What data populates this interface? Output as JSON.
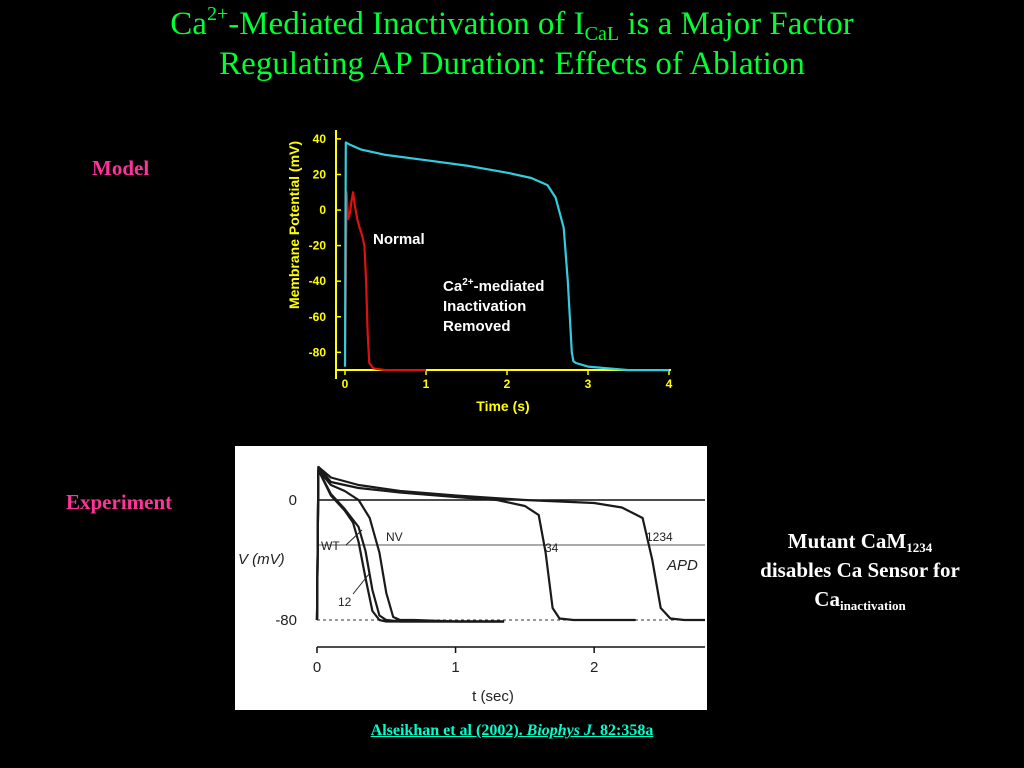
{
  "slide": {
    "title_ca": "Ca",
    "title_sup": "2+",
    "title_mid": "-Mediated Inactivation of I",
    "title_sub": "CaL",
    "title_end": " is a Major Factor",
    "title_line2": "Regulating AP Duration: Effects of Ablation",
    "model_label": "Model",
    "experiment_label": "Experiment",
    "mutant_text1": "Mutant CaM",
    "mutant_sub1": "1234",
    "mutant_text2": "disables Ca Sensor for",
    "mutant_text3": "Ca",
    "mutant_sub3": "inactivation",
    "citation_pre": "Alseikhan et al (2002). ",
    "citation_journal": "Biophys J.",
    "citation_post": " 82:358a"
  },
  "colors": {
    "title": "#00ff33",
    "labels": "#ff3399",
    "model_axes": "#ffff00",
    "model_normal": "#dd1111",
    "model_removed": "#33ccdd",
    "citation": "#00ffcc"
  },
  "chart_data": [
    {
      "type": "line",
      "xlabel": "Time (s)",
      "ylabel": "Membrane Potential (mV)",
      "xlim": [
        0,
        4
      ],
      "ylim": [
        -95,
        45
      ],
      "xticks": [
        0,
        1,
        2,
        3,
        4
      ],
      "yticks": [
        40,
        20,
        0,
        -20,
        -40,
        -60,
        -80
      ],
      "grid": false,
      "series": [
        {
          "name": "Normal",
          "color": "#dd1111",
          "x": [
            0,
            0.02,
            0.04,
            0.06,
            0.08,
            0.1,
            0.12,
            0.15,
            0.18,
            0.21,
            0.24,
            0.26,
            0.28,
            0.3,
            0.35,
            0.5,
            1.0
          ],
          "y": [
            -88,
            10,
            -5,
            -2,
            5,
            10,
            3,
            -5,
            -10,
            -14,
            -20,
            -40,
            -70,
            -86,
            -89,
            -90,
            -90
          ]
        },
        {
          "name_line1": "Ca",
          "name_sup": "2+",
          "name_line1b": "-mediated",
          "name_line2": "Inactivation",
          "name_line3": "Removed",
          "color": "#33ccdd",
          "x": [
            0,
            0.01,
            0.05,
            0.2,
            0.5,
            1.0,
            1.5,
            2.0,
            2.3,
            2.5,
            2.6,
            2.7,
            2.75,
            2.8,
            2.82,
            2.85,
            3.0,
            3.5,
            4.0
          ],
          "y": [
            -88,
            38,
            37,
            34,
            31,
            28,
            25,
            21,
            18,
            14,
            7,
            -10,
            -40,
            -80,
            -85,
            -86,
            -88,
            -90,
            -90
          ]
        }
      ]
    },
    {
      "type": "line",
      "xlabel": "t (sec)",
      "ylabel": "V (mV)",
      "xlim": [
        0,
        2.8
      ],
      "ylim": [
        -90,
        30
      ],
      "xticks": [
        0,
        1,
        2
      ],
      "yticks": [
        0,
        -80
      ],
      "apd_label": "APD",
      "series": [
        {
          "name": "WT",
          "x": [
            0,
            0.01,
            0.1,
            0.2,
            0.26,
            0.3,
            0.35,
            0.4,
            0.45,
            0.5,
            0.6,
            1.0,
            1.35
          ],
          "y": [
            -80,
            20,
            3,
            -7,
            -15,
            -28,
            -52,
            -74,
            -80,
            -81,
            -81,
            -81,
            -81
          ]
        },
        {
          "name": "12",
          "x": [
            0,
            0.01,
            0.1,
            0.2,
            0.3,
            0.35,
            0.4,
            0.45,
            0.5,
            0.6,
            1.0,
            1.35
          ],
          "y": [
            -80,
            20,
            4,
            -6,
            -18,
            -34,
            -60,
            -77,
            -80,
            -81,
            -81,
            -81
          ]
        },
        {
          "name": "NV",
          "x": [
            0,
            0.01,
            0.1,
            0.2,
            0.3,
            0.38,
            0.45,
            0.5,
            0.55,
            0.6,
            0.7,
            1.0,
            1.35
          ],
          "y": [
            -80,
            20,
            10,
            6,
            0,
            -12,
            -35,
            -62,
            -78,
            -80,
            -80,
            -81,
            -81
          ]
        },
        {
          "name": "34",
          "x": [
            0,
            0.01,
            0.1,
            0.3,
            0.6,
            1.0,
            1.3,
            1.5,
            1.6,
            1.65,
            1.7,
            1.75,
            1.85,
            2.3
          ],
          "y": [
            -80,
            22,
            12,
            8,
            5,
            2,
            0,
            -4,
            -10,
            -35,
            -72,
            -79,
            -80,
            -80
          ]
        },
        {
          "name": "1234",
          "x": [
            0,
            0.01,
            0.1,
            0.3,
            0.6,
            1.0,
            1.5,
            2.0,
            2.2,
            2.35,
            2.42,
            2.48,
            2.55,
            2.65,
            2.8
          ],
          "y": [
            -80,
            22,
            15,
            10,
            6,
            3,
            0,
            -2,
            -5,
            -12,
            -40,
            -72,
            -79,
            -80,
            -80
          ]
        }
      ]
    }
  ]
}
